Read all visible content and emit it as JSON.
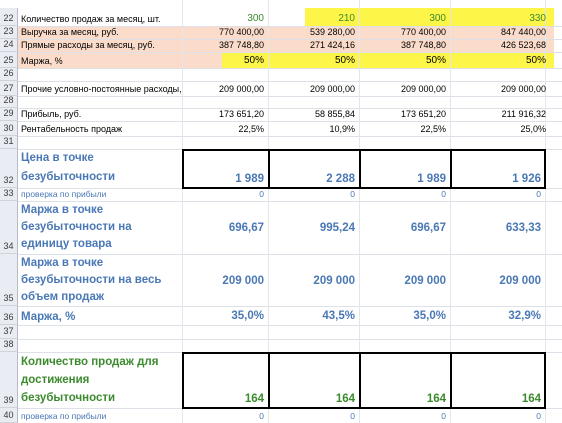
{
  "colors": {
    "yellow": "#fdf548",
    "peach": "#fbdcca",
    "blue_text": "#4a78b5",
    "green_text": "#3c8a2e",
    "header_bg": "#e9ecf2"
  },
  "rows": {
    "r22": {
      "num": "22",
      "label": "Количество продаж за месяц, шт.",
      "values": [
        "300",
        "210",
        "300",
        "330"
      ]
    },
    "r23": {
      "num": "23",
      "label": "Выручка за месяц, руб.",
      "values": [
        "770 400,00",
        "539 280,00",
        "770 400,00",
        "847 440,00"
      ]
    },
    "r24": {
      "num": "24",
      "label": "Прямые расходы за месяц, руб.",
      "values": [
        "387 748,80",
        "271 424,16",
        "387 748,80",
        "426 523,68"
      ]
    },
    "r25": {
      "num": "25",
      "label": "Маржа, %",
      "values": [
        "50%",
        "50%",
        "50%",
        "50%"
      ]
    },
    "r26": {
      "num": "26"
    },
    "r27": {
      "num": "27",
      "label": "Прочие условно-постоянные расходы,",
      "values": [
        "209 000,00",
        "209 000,00",
        "209 000,00",
        "209 000,00"
      ]
    },
    "r28": {
      "num": "28"
    },
    "r29": {
      "num": "29",
      "label": "Прибыль, руб.",
      "values": [
        "173 651,20",
        "58 855,84",
        "173 651,20",
        "211 916,32"
      ]
    },
    "r30": {
      "num": "30",
      "label": "Рентабельность продаж",
      "values": [
        "22,5%",
        "10,9%",
        "22,5%",
        "25,0%"
      ]
    },
    "r31": {
      "num": "31"
    },
    "r32": {
      "num": "32",
      "label": "Цена в точке безубыточности",
      "values": [
        "1 989",
        "2 288",
        "1 989",
        "1 926"
      ]
    },
    "r33": {
      "num": "33",
      "label": "проверка по прибыли",
      "values": [
        "0",
        "0",
        "0",
        "0"
      ]
    },
    "r34": {
      "num": "34",
      "label": "Маржа в точке безубыточности на единицу товара",
      "values": [
        "696,67",
        "995,24",
        "696,67",
        "633,33"
      ]
    },
    "r35": {
      "num": "35",
      "label": "Маржа в точке безубыточности на весь объем продаж",
      "values": [
        "209 000",
        "209 000",
        "209 000",
        "209 000"
      ]
    },
    "r36": {
      "num": "36",
      "label": "Маржа, %",
      "values": [
        "35,0%",
        "43,5%",
        "35,0%",
        "32,9%"
      ]
    },
    "r37": {
      "num": "37"
    },
    "r38": {
      "num": "38"
    },
    "r39": {
      "num": "39",
      "label": "Количество продаж для достижения безубыточности",
      "values": [
        "164",
        "164",
        "164",
        "164"
      ]
    },
    "r40": {
      "num": "40",
      "label": "проверка по прибыли",
      "values": [
        "0",
        "0",
        "0",
        "0"
      ]
    }
  }
}
